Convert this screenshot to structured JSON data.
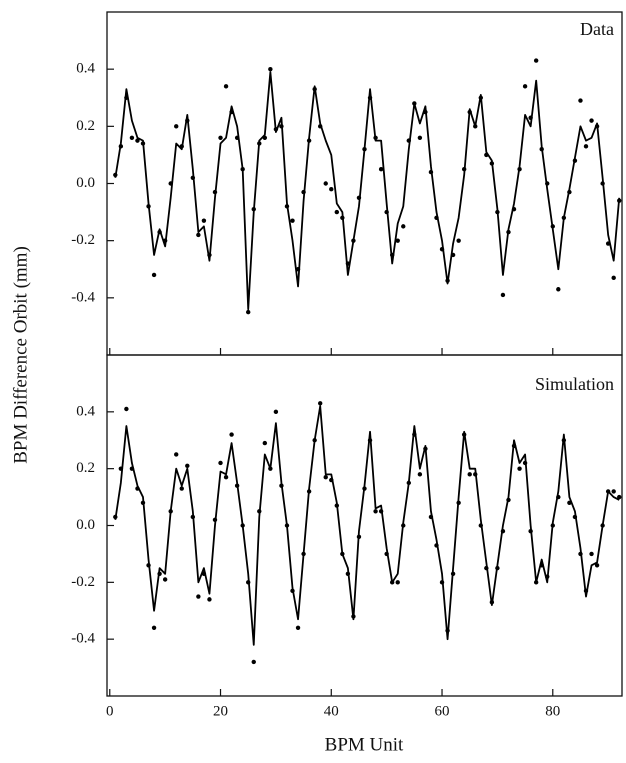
{
  "chart_data": [
    {
      "type": "line",
      "annotation": "Data",
      "ylabel": "BPM Difference Orbit (mm)",
      "xlim": [
        -0.5,
        92.5
      ],
      "ylim": [
        -0.6,
        0.6
      ],
      "yticks": [
        -0.4,
        -0.2,
        {
          "value": 0,
          "label": "0.0"
        },
        0.2,
        0.4
      ],
      "x": [
        1,
        2,
        3,
        4,
        5,
        6,
        7,
        8,
        9,
        10,
        11,
        12,
        13,
        14,
        15,
        16,
        17,
        18,
        19,
        20,
        21,
        22,
        23,
        24,
        25,
        26,
        27,
        28,
        29,
        30,
        31,
        32,
        33,
        34,
        35,
        36,
        37,
        38,
        39,
        40,
        41,
        42,
        43,
        44,
        45,
        46,
        47,
        48,
        49,
        50,
        51,
        52,
        53,
        54,
        55,
        56,
        57,
        58,
        59,
        60,
        61,
        62,
        63,
        64,
        65,
        66,
        67,
        68,
        69,
        70,
        71,
        72,
        73,
        74,
        75,
        76,
        77,
        78,
        79,
        80,
        81,
        82,
        83,
        84,
        85,
        86,
        87,
        88,
        89,
        90,
        91,
        92
      ],
      "series": [
        {
          "style": "line",
          "color": "#000000",
          "values": [
            0.02,
            0.14,
            0.33,
            0.22,
            0.16,
            0.15,
            -0.07,
            -0.25,
            -0.16,
            -0.22,
            -0.05,
            0.14,
            0.12,
            0.24,
            0.05,
            -0.17,
            -0.15,
            -0.27,
            -0.05,
            0.14,
            0.16,
            0.27,
            0.2,
            0.05,
            -0.44,
            -0.1,
            0.15,
            0.17,
            0.39,
            0.18,
            0.23,
            -0.07,
            -0.2,
            -0.36,
            -0.06,
            0.16,
            0.34,
            0.21,
            0.15,
            0.1,
            -0.07,
            -0.1,
            -0.32,
            -0.2,
            -0.08,
            0.12,
            0.33,
            0.15,
            0.15,
            -0.07,
            -0.28,
            -0.14,
            -0.08,
            0.12,
            0.28,
            0.21,
            0.27,
            0.06,
            -0.1,
            -0.2,
            -0.35,
            -0.21,
            -0.12,
            0.03,
            0.26,
            0.2,
            0.31,
            0.11,
            0.08,
            -0.09,
            -0.32,
            -0.16,
            -0.07,
            0.06,
            0.24,
            0.2,
            0.36,
            0.13,
            -0.02,
            -0.16,
            -0.3,
            -0.12,
            -0.02,
            0.09,
            0.2,
            0.15,
            0.16,
            0.21,
            0.02,
            -0.18,
            -0.27,
            -0.05
          ]
        },
        {
          "style": "dots",
          "color": "#000000",
          "values": [
            0.03,
            0.13,
            0.3,
            0.16,
            0.15,
            0.14,
            -0.08,
            -0.32,
            -0.17,
            -0.2,
            0.0,
            0.2,
            0.13,
            0.22,
            0.02,
            -0.18,
            -0.13,
            -0.25,
            -0.03,
            0.16,
            0.34,
            0.25,
            0.16,
            0.05,
            -0.45,
            -0.09,
            0.14,
            0.16,
            0.4,
            0.19,
            0.2,
            -0.08,
            -0.13,
            -0.3,
            -0.03,
            0.15,
            0.33,
            0.2,
            0.0,
            -0.02,
            -0.1,
            -0.12,
            -0.28,
            -0.2,
            -0.05,
            0.12,
            0.3,
            0.16,
            0.05,
            -0.1,
            -0.25,
            -0.2,
            -0.15,
            0.15,
            0.28,
            0.16,
            0.25,
            0.04,
            -0.12,
            -0.23,
            -0.34,
            -0.25,
            -0.2,
            0.05,
            0.25,
            0.2,
            0.3,
            0.1,
            0.07,
            -0.1,
            -0.39,
            -0.17,
            -0.09,
            0.05,
            0.34,
            0.23,
            0.43,
            0.12,
            0.0,
            -0.15,
            -0.37,
            -0.12,
            -0.03,
            0.08,
            0.29,
            0.13,
            0.22,
            0.2,
            0.0,
            -0.21,
            -0.33,
            -0.06
          ]
        }
      ]
    },
    {
      "type": "line",
      "annotation": "Simulation",
      "xlabel": "BPM Unit",
      "xlim": [
        -0.5,
        92.5
      ],
      "xticks": [
        0,
        20,
        40,
        60,
        80
      ],
      "ylim": [
        -0.6,
        0.6
      ],
      "yticks": [
        -0.4,
        -0.2,
        {
          "value": 0,
          "label": "0.0"
        },
        0.2,
        0.4
      ],
      "x": [
        1,
        2,
        3,
        4,
        5,
        6,
        7,
        8,
        9,
        10,
        11,
        12,
        13,
        14,
        15,
        16,
        17,
        18,
        19,
        20,
        21,
        22,
        23,
        24,
        25,
        26,
        27,
        28,
        29,
        30,
        31,
        32,
        33,
        34,
        35,
        36,
        37,
        38,
        39,
        40,
        41,
        42,
        43,
        44,
        45,
        46,
        47,
        48,
        49,
        50,
        51,
        52,
        53,
        54,
        55,
        56,
        57,
        58,
        59,
        60,
        61,
        62,
        63,
        64,
        65,
        66,
        67,
        68,
        69,
        70,
        71,
        72,
        73,
        74,
        75,
        76,
        77,
        78,
        79,
        80,
        81,
        82,
        83,
        84,
        85,
        86,
        87,
        88,
        89,
        90,
        91,
        92
      ],
      "series": [
        {
          "style": "line",
          "color": "#000000",
          "values": [
            0.02,
            0.15,
            0.35,
            0.22,
            0.14,
            0.1,
            -0.12,
            -0.3,
            -0.15,
            -0.17,
            0.05,
            0.2,
            0.14,
            0.2,
            0.05,
            -0.2,
            -0.15,
            -0.24,
            0.0,
            0.19,
            0.18,
            0.29,
            0.15,
            0.0,
            -0.17,
            -0.42,
            0.03,
            0.25,
            0.2,
            0.36,
            0.15,
            0.0,
            -0.22,
            -0.33,
            -0.1,
            0.13,
            0.3,
            0.42,
            0.18,
            0.18,
            0.08,
            -0.1,
            -0.15,
            -0.33,
            -0.02,
            0.14,
            0.33,
            0.06,
            0.07,
            -0.08,
            -0.2,
            -0.17,
            0.01,
            0.15,
            0.35,
            0.2,
            0.28,
            0.05,
            -0.05,
            -0.17,
            -0.4,
            -0.15,
            0.1,
            0.33,
            0.2,
            0.2,
            0.02,
            -0.13,
            -0.28,
            -0.14,
            0.0,
            0.1,
            0.3,
            0.22,
            0.25,
            0.0,
            -0.2,
            -0.12,
            -0.2,
            0.01,
            0.12,
            0.32,
            0.1,
            0.05,
            -0.08,
            -0.25,
            -0.14,
            -0.13,
            0.0,
            0.12,
            0.1,
            0.09
          ]
        },
        {
          "style": "dots",
          "color": "#000000",
          "values": [
            0.03,
            0.2,
            0.41,
            0.2,
            0.13,
            0.08,
            -0.14,
            -0.36,
            -0.17,
            -0.19,
            0.05,
            0.25,
            0.13,
            0.21,
            0.03,
            -0.25,
            -0.17,
            -0.26,
            0.02,
            0.22,
            0.17,
            0.32,
            0.14,
            0.0,
            -0.2,
            -0.48,
            0.05,
            0.29,
            0.2,
            0.4,
            0.14,
            0.0,
            -0.23,
            -0.36,
            -0.1,
            0.12,
            0.3,
            0.43,
            0.17,
            0.16,
            0.07,
            -0.1,
            -0.17,
            -0.32,
            -0.04,
            0.13,
            0.3,
            0.05,
            0.05,
            -0.1,
            -0.2,
            -0.2,
            0.0,
            0.15,
            0.32,
            0.18,
            0.27,
            0.03,
            -0.07,
            -0.2,
            -0.37,
            -0.17,
            0.08,
            0.32,
            0.18,
            0.18,
            0.0,
            -0.15,
            -0.27,
            -0.15,
            -0.02,
            0.09,
            0.28,
            0.2,
            0.22,
            -0.02,
            -0.2,
            -0.14,
            -0.18,
            0.0,
            0.1,
            0.3,
            0.08,
            0.03,
            -0.1,
            -0.23,
            -0.1,
            -0.14,
            0.0,
            0.12,
            0.12,
            0.1
          ]
        }
      ]
    }
  ]
}
